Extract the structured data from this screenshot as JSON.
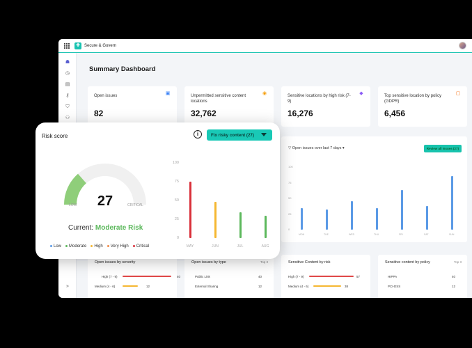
{
  "app": {
    "title": "Secure & Govern",
    "logo_glyph": "✚"
  },
  "nav": [
    {
      "icon": "home-icon",
      "glyph": "☗"
    },
    {
      "icon": "clock-icon",
      "glyph": "◷"
    },
    {
      "icon": "document-icon",
      "glyph": "▤"
    },
    {
      "icon": "key-icon",
      "glyph": "⚷"
    },
    {
      "icon": "shield-icon",
      "glyph": "⛉"
    },
    {
      "icon": "people-icon",
      "glyph": "⚇"
    }
  ],
  "nav_collapse": "»",
  "page_title": "Summary Dashboard",
  "stats": [
    {
      "label": "Open issues",
      "value": "82",
      "icon": "clipboard-icon",
      "glyph": "▣",
      "color": "#3b82f6"
    },
    {
      "label": "Unpermitted sensitive content locations",
      "value": "32,762",
      "icon": "alert-icon",
      "glyph": "◉",
      "color": "#f59e0b"
    },
    {
      "label": "Sensitive locations by high risk (7-9)",
      "value": "16,276",
      "icon": "pin-icon",
      "glyph": "◆",
      "color": "#8b5cf6"
    },
    {
      "label": "Top sensitive location by policy (GDPR)",
      "value": "6,456",
      "icon": "policy-icon",
      "glyph": "▢",
      "color": "#f97316"
    }
  ],
  "issues_chart": {
    "filter_label": "Open issues over last 7 days",
    "review_button": "Review all issues (27)",
    "y_ticks": [
      "100",
      "75",
      "50",
      "25",
      "0"
    ],
    "x_labels": [
      "MON",
      "TUE",
      "WED",
      "THU",
      "FRI",
      "SAT",
      "SUN"
    ],
    "values": [
      35,
      32,
      46,
      34,
      63,
      38,
      86
    ],
    "ymax": 100
  },
  "bottom_cards": [
    {
      "title": "Open issues by severity",
      "top": "",
      "rows": [
        {
          "label": "High (7 - 9)",
          "value": "40",
          "frac": 0.85,
          "color": "#e04848"
        },
        {
          "label": "Medium (4 - 6)",
          "value": "12",
          "frac": 0.26,
          "color": "#f5b731"
        }
      ]
    },
    {
      "title": "Open issues by type",
      "top": "Top 3",
      "rows": [
        {
          "label": "Public Link",
          "value": "40"
        },
        {
          "label": "External Sharing",
          "value": "12"
        }
      ]
    },
    {
      "title": "Sensitive Content by risk",
      "top": "",
      "rows": [
        {
          "label": "High (7 - 9)",
          "value": "57",
          "frac": 0.82,
          "color": "#e04848"
        },
        {
          "label": "Medium (4 - 6)",
          "value": "38",
          "frac": 0.55,
          "color": "#f5b731"
        }
      ]
    },
    {
      "title": "Sensitive content by policy",
      "top": "Top 3",
      "rows": [
        {
          "label": "HIPPA",
          "value": "40"
        },
        {
          "label": "PCI-DSS",
          "value": "12"
        }
      ]
    }
  ],
  "risk": {
    "title": "Risk score",
    "fix_button": "Fix risky content (27)",
    "score": "27",
    "low_label": "LOW",
    "critical_label": "CRITICAL",
    "current_prefix": "Current:",
    "current_level": "Moderate Risk",
    "gauge_fraction": 0.27,
    "legend": [
      {
        "label": "Low",
        "color": "#5b9ae6"
      },
      {
        "label": "Moderate",
        "color": "#5cb85c"
      },
      {
        "label": "High",
        "color": "#f5b731"
      },
      {
        "label": "Very High",
        "color": "#f08c4a"
      },
      {
        "label": "Critical",
        "color": "#d9303a"
      }
    ]
  },
  "chart_data": {
    "type": "bar",
    "categories": [
      "MAY",
      "JUN",
      "JUL",
      "AUG"
    ],
    "values": [
      75,
      48,
      34,
      30
    ],
    "colors": [
      "#d9303a",
      "#f5b731",
      "#5cb85c",
      "#5cb85c"
    ],
    "y_ticks": [
      "100",
      "75",
      "50",
      "25",
      "0"
    ],
    "ylim": [
      0,
      100
    ],
    "grid": false
  }
}
